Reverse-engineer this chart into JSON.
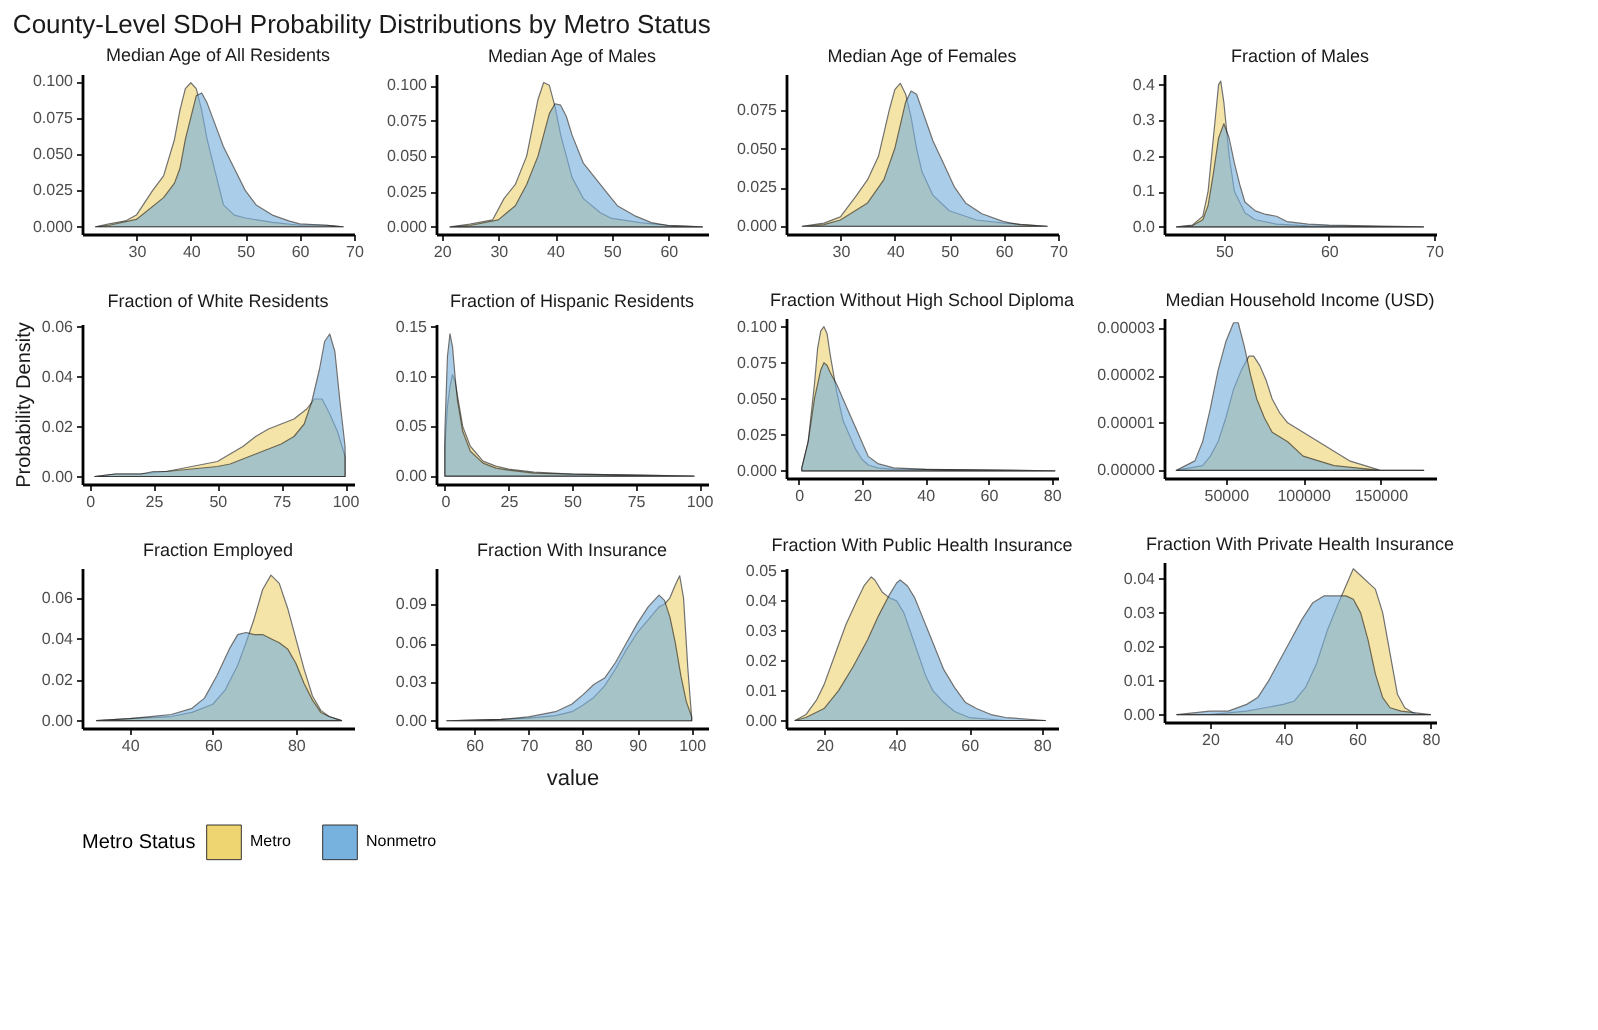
{
  "chart_data": [
    {
      "type": "area",
      "title": "Median Age of All Residents",
      "annotations": [
        "County-Level SDoH Probability Distributions by Metro Status"
      ],
      "legend": "bottom",
      "legend_title": "Metro Status",
      "xlim": [
        20,
        70
      ],
      "xticks": [
        30,
        40,
        50,
        60,
        70
      ],
      "ylim": [
        -0.005,
        0.105
      ],
      "yticks": [
        {
          "value": 0,
          "label": "0.000"
        },
        {
          "value": 0.025,
          "label": "0.025"
        },
        {
          "value": 0.05,
          "label": "0.050"
        },
        {
          "value": 0.075,
          "label": "0.075"
        },
        {
          "value": 0.1,
          "label": "0.100"
        }
      ],
      "series": [
        {
          "name": "Metro",
          "color": "#efd572",
          "x": [
            22.5,
            25,
            28,
            30,
            33,
            35,
            37,
            38,
            39,
            40,
            41,
            42,
            43,
            44,
            45,
            46,
            48,
            50,
            55,
            60,
            65,
            68
          ],
          "values": [
            0,
            0.002,
            0.004,
            0.008,
            0.025,
            0.035,
            0.06,
            0.08,
            0.095,
            0.099,
            0.095,
            0.08,
            0.06,
            0.045,
            0.03,
            0.015,
            0.008,
            0.006,
            0.003,
            0.001,
            0.001,
            0
          ]
        },
        {
          "name": "Nonmetro",
          "color": "#77b1dd",
          "x": [
            22.5,
            25,
            30,
            35,
            37,
            38,
            39,
            40,
            41,
            42,
            43,
            44,
            46,
            48,
            50,
            52,
            55,
            58,
            60,
            65,
            68
          ],
          "values": [
            0,
            0.001,
            0.005,
            0.02,
            0.03,
            0.04,
            0.06,
            0.075,
            0.09,
            0.092,
            0.085,
            0.075,
            0.055,
            0.04,
            0.025,
            0.015,
            0.008,
            0.004,
            0.002,
            0.001,
            0
          ]
        }
      ]
    },
    {
      "type": "area",
      "title": "Median Age of Males",
      "xlim": [
        19,
        67
      ],
      "xticks": [
        20,
        30,
        40,
        50,
        60
      ],
      "ylim": [
        -0.005,
        0.108
      ],
      "yticks": [
        {
          "value": 0,
          "label": "0.000"
        },
        {
          "value": 0.025,
          "label": "0.025"
        },
        {
          "value": 0.05,
          "label": "0.050"
        },
        {
          "value": 0.075,
          "label": "0.075"
        },
        {
          "value": 0.1,
          "label": "0.100"
        }
      ],
      "series": [
        {
          "name": "Metro",
          "color": "#efd572",
          "x": [
            21.5,
            25,
            29,
            31,
            33,
            35,
            36,
            37,
            38,
            39,
            40,
            41,
            42,
            43,
            45,
            48,
            50,
            55,
            60,
            66
          ],
          "values": [
            0,
            0.002,
            0.005,
            0.02,
            0.03,
            0.05,
            0.07,
            0.09,
            0.102,
            0.1,
            0.085,
            0.065,
            0.05,
            0.035,
            0.02,
            0.01,
            0.006,
            0.003,
            0.001,
            0
          ]
        },
        {
          "name": "Nonmetro",
          "color": "#77b1dd",
          "x": [
            21.5,
            25,
            30,
            33,
            35,
            37,
            38,
            39,
            40,
            41,
            42,
            43,
            45,
            47,
            49,
            51,
            54,
            57,
            60,
            66
          ],
          "values": [
            0,
            0.001,
            0.005,
            0.015,
            0.03,
            0.05,
            0.065,
            0.08,
            0.087,
            0.086,
            0.078,
            0.065,
            0.045,
            0.035,
            0.025,
            0.015,
            0.008,
            0.003,
            0.001,
            0
          ]
        }
      ]
    },
    {
      "type": "area",
      "title": "Median Age of Females",
      "xlim": [
        20,
        70
      ],
      "xticks": [
        30,
        40,
        50,
        60,
        70
      ],
      "ylim": [
        -0.005,
        0.098
      ],
      "yticks": [
        {
          "value": 0,
          "label": "0.000"
        },
        {
          "value": 0.025,
          "label": "0.025"
        },
        {
          "value": 0.05,
          "label": "0.050"
        },
        {
          "value": 0.075,
          "label": "0.075"
        }
      ],
      "series": [
        {
          "name": "Metro",
          "color": "#efd572",
          "x": [
            23,
            27,
            30,
            33,
            35,
            37,
            38,
            39,
            40,
            41,
            42,
            43,
            44,
            45,
            47,
            50,
            55,
            60,
            68
          ],
          "values": [
            0,
            0.002,
            0.006,
            0.02,
            0.03,
            0.045,
            0.06,
            0.075,
            0.088,
            0.092,
            0.085,
            0.07,
            0.05,
            0.035,
            0.02,
            0.01,
            0.004,
            0.002,
            0
          ]
        },
        {
          "name": "Nonmetro",
          "color": "#77b1dd",
          "x": [
            23,
            27,
            30,
            35,
            38,
            40,
            41,
            42,
            43,
            44,
            45,
            47,
            49,
            51,
            53,
            56,
            60,
            63,
            68
          ],
          "values": [
            0,
            0.001,
            0.004,
            0.015,
            0.03,
            0.05,
            0.065,
            0.08,
            0.087,
            0.085,
            0.075,
            0.055,
            0.04,
            0.025,
            0.015,
            0.008,
            0.003,
            0.001,
            0
          ]
        }
      ]
    },
    {
      "type": "area",
      "title": "Fraction of Males",
      "xlim": [
        44.3,
        70.2
      ],
      "xticks": [
        50,
        60,
        70
      ],
      "ylim": [
        -0.02,
        0.43
      ],
      "yticks": [
        {
          "value": 0,
          "label": "0.0"
        },
        0.1,
        0.2,
        0.3,
        0.4
      ],
      "series": [
        {
          "name": "Metro",
          "color": "#efd572",
          "x": [
            45.5,
            47,
            48,
            48.5,
            49,
            49.5,
            49.7,
            50,
            50.5,
            51,
            52,
            53,
            55,
            58,
            60,
            65,
            69
          ],
          "values": [
            0,
            0.005,
            0.03,
            0.1,
            0.25,
            0.4,
            0.41,
            0.35,
            0.2,
            0.1,
            0.04,
            0.02,
            0.008,
            0.003,
            0.002,
            0.001,
            0
          ]
        },
        {
          "name": "Nonmetro",
          "color": "#77b1dd",
          "x": [
            45.5,
            47,
            48,
            48.5,
            49,
            49.5,
            50,
            50.5,
            51,
            51.5,
            52,
            53,
            54,
            55,
            56,
            58,
            60,
            65,
            69
          ],
          "values": [
            0,
            0.003,
            0.02,
            0.06,
            0.15,
            0.25,
            0.29,
            0.25,
            0.18,
            0.12,
            0.07,
            0.045,
            0.035,
            0.03,
            0.015,
            0.008,
            0.005,
            0.002,
            0
          ]
        }
      ]
    },
    {
      "type": "area",
      "title": "Fraction of White Residents",
      "ylabel": "Probability Density",
      "xlim": [
        -3,
        103.5
      ],
      "xticks": [
        0,
        25,
        50,
        75,
        100
      ],
      "ylim": [
        -0.003,
        0.061
      ],
      "yticks": [
        {
          "value": 0,
          "label": "0.00"
        },
        {
          "value": 0.02,
          "label": "0.02"
        },
        {
          "value": 0.04,
          "label": "0.04"
        },
        {
          "value": 0.06,
          "label": "0.06"
        }
      ],
      "series": [
        {
          "name": "Metro",
          "color": "#efd572",
          "x": [
            2,
            10,
            20,
            30,
            40,
            50,
            55,
            60,
            65,
            70,
            75,
            80,
            85,
            88,
            91,
            94,
            97,
            100
          ],
          "values": [
            0,
            0.001,
            0.001,
            0.002,
            0.004,
            0.006,
            0.009,
            0.012,
            0.016,
            0.019,
            0.021,
            0.023,
            0.027,
            0.031,
            0.031,
            0.025,
            0.018,
            0.008
          ]
        },
        {
          "name": "Nonmetro",
          "color": "#77b1dd",
          "x": [
            2,
            10,
            20,
            25,
            30,
            40,
            50,
            55,
            60,
            65,
            70,
            75,
            80,
            84,
            87,
            90,
            92,
            94,
            96,
            98,
            100
          ],
          "values": [
            0,
            0.001,
            0.001,
            0.002,
            0.002,
            0.003,
            0.004,
            0.005,
            0.007,
            0.009,
            0.011,
            0.013,
            0.016,
            0.021,
            0.03,
            0.043,
            0.054,
            0.057,
            0.05,
            0.03,
            0.012
          ]
        }
      ]
    },
    {
      "type": "area",
      "title": "Fraction of Hispanic Residents",
      "xlim": [
        -3.5,
        103.5
      ],
      "xticks": [
        0,
        25,
        50,
        75,
        100
      ],
      "ylim": [
        -0.008,
        0.153
      ],
      "yticks": [
        {
          "value": 0,
          "label": "0.00"
        },
        {
          "value": 0.05,
          "label": "0.05"
        },
        {
          "value": 0.1,
          "label": "0.10"
        },
        {
          "value": 0.15,
          "label": "0.15"
        }
      ],
      "series": [
        {
          "name": "Metro",
          "color": "#efd572",
          "x": [
            0,
            1,
            2,
            3,
            4,
            5,
            7,
            10,
            15,
            20,
            25,
            35,
            50,
            75,
            98
          ],
          "values": [
            0.03,
            0.07,
            0.09,
            0.102,
            0.095,
            0.08,
            0.05,
            0.03,
            0.015,
            0.01,
            0.007,
            0.004,
            0.002,
            0.001,
            0
          ]
        },
        {
          "name": "Nonmetro",
          "color": "#77b1dd",
          "x": [
            0,
            1,
            2,
            3,
            4,
            5,
            7,
            10,
            15,
            20,
            25,
            35,
            50,
            75,
            98
          ],
          "values": [
            0.045,
            0.12,
            0.143,
            0.13,
            0.1,
            0.075,
            0.045,
            0.025,
            0.013,
            0.008,
            0.006,
            0.003,
            0.002,
            0.001,
            0
          ]
        }
      ]
    },
    {
      "type": "area",
      "title": "Fraction Without High School Diploma",
      "xlim": [
        -4,
        82
      ],
      "xticks": [
        0,
        20,
        40,
        60,
        80
      ],
      "ylim": [
        -0.005,
        0.106
      ],
      "yticks": [
        {
          "value": 0,
          "label": "0.000"
        },
        {
          "value": 0.025,
          "label": "0.025"
        },
        {
          "value": 0.05,
          "label": "0.050"
        },
        {
          "value": 0.075,
          "label": "0.075"
        },
        {
          "value": 0.1,
          "label": "0.100"
        }
      ],
      "series": [
        {
          "name": "Metro",
          "color": "#efd572",
          "x": [
            1,
            3,
            5,
            6,
            7,
            8,
            9,
            10,
            12,
            14,
            16,
            18,
            20,
            22,
            25,
            30,
            40,
            81
          ],
          "values": [
            0.002,
            0.02,
            0.06,
            0.085,
            0.097,
            0.1,
            0.095,
            0.08,
            0.055,
            0.035,
            0.025,
            0.015,
            0.008,
            0.004,
            0.002,
            0.001,
            0.001,
            0
          ]
        },
        {
          "name": "Nonmetro",
          "color": "#77b1dd",
          "x": [
            1,
            3,
            5,
            7,
            8,
            9,
            10,
            12,
            14,
            16,
            18,
            20,
            22,
            25,
            30,
            40,
            81
          ],
          "values": [
            0.002,
            0.02,
            0.05,
            0.07,
            0.075,
            0.073,
            0.068,
            0.06,
            0.05,
            0.04,
            0.03,
            0.02,
            0.01,
            0.005,
            0.002,
            0.001,
            0
          ]
        }
      ]
    },
    {
      "type": "area",
      "title": "Median Household Income (USD)",
      "xlim": [
        10000,
        186000
      ],
      "xticks": [
        50000,
        100000,
        150000
      ],
      "ylim": [
        -1.6e-06,
        3.2e-05
      ],
      "yticks": [
        {
          "value": 0,
          "label": "0.00000"
        },
        {
          "value": 1e-05,
          "label": "0.00001"
        },
        {
          "value": 2e-05,
          "label": "0.00002"
        },
        {
          "value": 3e-05,
          "label": "0.00003"
        }
      ],
      "series": [
        {
          "name": "Metro",
          "color": "#efd572",
          "x": [
            18000,
            35000,
            40000,
            45000,
            50000,
            55000,
            60000,
            65000,
            68000,
            72000,
            76000,
            80000,
            85000,
            90000,
            100000,
            110000,
            115000,
            120000,
            130000,
            150000,
            178000
          ],
          "values": [
            0,
            1e-06,
            3e-06,
            6e-06,
            1.1e-05,
            1.7e-05,
            2.1e-05,
            2.4e-05,
            2.4e-05,
            2.2e-05,
            1.9e-05,
            1.5e-05,
            1.2e-05,
            1e-05,
            8e-06,
            6e-06,
            5e-06,
            4e-06,
            2e-06,
            0,
            0
          ]
        },
        {
          "name": "Nonmetro",
          "color": "#77b1dd",
          "x": [
            18000,
            30000,
            35000,
            40000,
            45000,
            50000,
            55000,
            58000,
            62000,
            66000,
            70000,
            75000,
            80000,
            90000,
            100000,
            120000,
            150000,
            178000
          ],
          "values": [
            0,
            2e-06,
            6e-06,
            1.3e-05,
            2.1e-05,
            2.7e-05,
            3.1e-05,
            3.1e-05,
            2.6e-05,
            2e-05,
            1.5e-05,
            1.1e-05,
            8e-06,
            6e-06,
            3e-06,
            1e-06,
            0,
            0
          ]
        }
      ]
    },
    {
      "type": "area",
      "title": "Fraction Employed",
      "xlim": [
        28.5,
        94
      ],
      "xticks": [
        40,
        60,
        80
      ],
      "ylim": [
        -0.0036,
        0.0745
      ],
      "yticks": [
        {
          "value": 0,
          "label": "0.00"
        },
        {
          "value": 0.02,
          "label": "0.02"
        },
        {
          "value": 0.04,
          "label": "0.04"
        },
        {
          "value": 0.06,
          "label": "0.06"
        }
      ],
      "series": [
        {
          "name": "Metro",
          "color": "#efd572",
          "x": [
            32,
            40,
            50,
            55,
            60,
            63,
            66,
            68,
            70,
            72,
            74,
            76,
            78,
            80,
            82,
            84,
            86,
            88,
            91
          ],
          "values": [
            0,
            0.001,
            0.002,
            0.004,
            0.008,
            0.015,
            0.027,
            0.038,
            0.05,
            0.064,
            0.071,
            0.067,
            0.055,
            0.04,
            0.025,
            0.012,
            0.005,
            0.002,
            0
          ]
        },
        {
          "name": "Nonmetro",
          "color": "#77b1dd",
          "x": [
            32,
            40,
            45,
            50,
            55,
            58,
            61,
            64,
            66,
            68,
            70,
            72,
            74,
            76,
            78,
            80,
            82,
            84,
            86,
            88,
            91
          ],
          "values": [
            0,
            0.001,
            0.002,
            0.003,
            0.006,
            0.011,
            0.022,
            0.035,
            0.042,
            0.043,
            0.042,
            0.042,
            0.04,
            0.038,
            0.035,
            0.028,
            0.018,
            0.01,
            0.004,
            0.002,
            0
          ]
        }
      ]
    },
    {
      "type": "area",
      "title": "Fraction With Insurance",
      "xlabel": "value",
      "xlim": [
        53,
        103
      ],
      "xticks": [
        60,
        70,
        80,
        90,
        100
      ],
      "ylim": [
        -0.0056,
        0.118
      ],
      "yticks": [
        {
          "value": 0,
          "label": "0.00"
        },
        {
          "value": 0.03,
          "label": "0.03"
        },
        {
          "value": 0.06,
          "label": "0.06"
        },
        {
          "value": 0.09,
          "label": "0.09"
        }
      ],
      "series": [
        {
          "name": "Metro",
          "color": "#efd572",
          "x": [
            55,
            65,
            70,
            75,
            78,
            80,
            82,
            84,
            86,
            88,
            90,
            92,
            94,
            95,
            96,
            97,
            97.8,
            98.5,
            99.3,
            100
          ],
          "values": [
            0,
            0.001,
            0.002,
            0.004,
            0.007,
            0.012,
            0.018,
            0.027,
            0.04,
            0.055,
            0.068,
            0.078,
            0.088,
            0.09,
            0.095,
            0.105,
            0.112,
            0.095,
            0.04,
            0.002
          ]
        },
        {
          "name": "Nonmetro",
          "color": "#77b1dd",
          "x": [
            55,
            65,
            70,
            75,
            78,
            80,
            82,
            84,
            86,
            88,
            90,
            92,
            94,
            95,
            96,
            97,
            98,
            99,
            100
          ],
          "values": [
            0,
            0.001,
            0.003,
            0.007,
            0.013,
            0.02,
            0.028,
            0.033,
            0.045,
            0.06,
            0.075,
            0.088,
            0.097,
            0.093,
            0.08,
            0.06,
            0.035,
            0.015,
            0.003
          ]
        }
      ]
    },
    {
      "type": "area",
      "title": "Fraction With Public Health Insurance",
      "xlim": [
        9.5,
        84.5
      ],
      "xticks": [
        20,
        40,
        60,
        80
      ],
      "ylim": [
        -0.0025,
        0.051
      ],
      "yticks": [
        {
          "value": 0,
          "label": "0.00"
        },
        {
          "value": 0.01,
          "label": "0.01"
        },
        {
          "value": 0.02,
          "label": "0.02"
        },
        {
          "value": 0.03,
          "label": "0.03"
        },
        {
          "value": 0.04,
          "label": "0.04"
        },
        {
          "value": 0.05,
          "label": "0.05"
        }
      ],
      "series": [
        {
          "name": "Metro",
          "color": "#efd572",
          "x": [
            12,
            15,
            18,
            20,
            23,
            26,
            29,
            31,
            33,
            34,
            36,
            38,
            40,
            42,
            44,
            46,
            48,
            50,
            53,
            56,
            60,
            70,
            81
          ],
          "values": [
            0,
            0.002,
            0.007,
            0.012,
            0.022,
            0.032,
            0.04,
            0.045,
            0.048,
            0.047,
            0.043,
            0.041,
            0.04,
            0.036,
            0.029,
            0.022,
            0.015,
            0.01,
            0.006,
            0.003,
            0.001,
            0,
            0
          ]
        },
        {
          "name": "Nonmetro",
          "color": "#77b1dd",
          "x": [
            12,
            15,
            20,
            24,
            28,
            32,
            35,
            38,
            40,
            41,
            43,
            45,
            47,
            49,
            51,
            53,
            56,
            59,
            62,
            66,
            70,
            81
          ],
          "values": [
            0,
            0.001,
            0.004,
            0.01,
            0.018,
            0.027,
            0.035,
            0.042,
            0.046,
            0.047,
            0.045,
            0.041,
            0.035,
            0.029,
            0.023,
            0.017,
            0.011,
            0.006,
            0.004,
            0.002,
            0.001,
            0
          ]
        }
      ]
    },
    {
      "type": "area",
      "title": "Fraction With Private Health Insurance",
      "xlim": [
        7.5,
        81.5
      ],
      "xticks": [
        20,
        40,
        60,
        80
      ],
      "ylim": [
        -0.0022,
        0.045
      ],
      "yticks": [
        {
          "value": 0,
          "label": "0.00"
        },
        {
          "value": 0.01,
          "label": "0.01"
        },
        {
          "value": 0.02,
          "label": "0.02"
        },
        {
          "value": 0.03,
          "label": "0.03"
        },
        {
          "value": 0.04,
          "label": "0.04"
        }
      ],
      "series": [
        {
          "name": "Metro",
          "color": "#efd572",
          "x": [
            11,
            20,
            30,
            35,
            40,
            43,
            46,
            49,
            52,
            55,
            57,
            59,
            61,
            63,
            65,
            67,
            69,
            71,
            73,
            76,
            80
          ],
          "values": [
            0,
            0,
            0.001,
            0.002,
            0.003,
            0.004,
            0.008,
            0.015,
            0.025,
            0.033,
            0.038,
            0.043,
            0.041,
            0.039,
            0.037,
            0.03,
            0.018,
            0.006,
            0.002,
            0,
            0
          ]
        },
        {
          "name": "Nonmetro",
          "color": "#77b1dd",
          "x": [
            11,
            20,
            25,
            30,
            33,
            36,
            39,
            42,
            45,
            48,
            51,
            54,
            57,
            59,
            61,
            63,
            65,
            67,
            69,
            72,
            80
          ],
          "values": [
            0,
            0.001,
            0.001,
            0.003,
            0.005,
            0.01,
            0.016,
            0.022,
            0.028,
            0.033,
            0.035,
            0.035,
            0.035,
            0.034,
            0.03,
            0.022,
            0.012,
            0.005,
            0.002,
            0.001,
            0
          ]
        }
      ]
    }
  ]
}
